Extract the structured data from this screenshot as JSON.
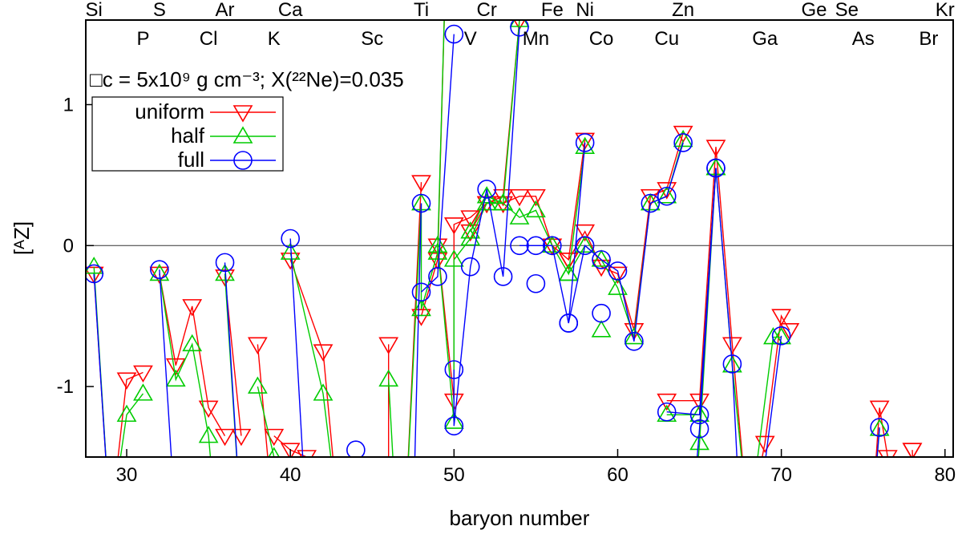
{
  "chart_data": {
    "type": "line",
    "xlabel": "baryon number",
    "ylabel": "[ᴬZ]",
    "xlim": [
      27.5,
      80.5
    ],
    "ylim": [
      -1.5,
      1.6
    ],
    "xticks": [
      30,
      40,
      50,
      60,
      70,
      80
    ],
    "yticks": [
      -1,
      0,
      1
    ],
    "annotation": "□c = 5x10⁹ g cm⁻³; X(²²Ne)=0.035",
    "reference_line_y": 0,
    "legend": {
      "placement": "upper-left"
    },
    "element_labels_top": [
      {
        "name": "Si",
        "A": 28
      },
      {
        "name": "S",
        "A": 32
      },
      {
        "name": "Ar",
        "A": 36
      },
      {
        "name": "Ca",
        "A": 40
      },
      {
        "name": "Ti",
        "A": 48
      },
      {
        "name": "Cr",
        "A": 52
      },
      {
        "name": "Fe",
        "A": 56
      },
      {
        "name": "Ni",
        "A": 58
      },
      {
        "name": "Zn",
        "A": 64
      },
      {
        "name": "Ge",
        "A": 72
      },
      {
        "name": "Se",
        "A": 74
      },
      {
        "name": "Kr",
        "A": 80
      }
    ],
    "element_labels_bottom": [
      {
        "name": "P",
        "A": 31
      },
      {
        "name": "Cl",
        "A": 35
      },
      {
        "name": "K",
        "A": 39
      },
      {
        "name": "Sc",
        "A": 45
      },
      {
        "name": "V",
        "A": 51
      },
      {
        "name": "Mn",
        "A": 55
      },
      {
        "name": "Co",
        "A": 59
      },
      {
        "name": "Cu",
        "A": 63
      },
      {
        "name": "Ga",
        "A": 69
      },
      {
        "name": "As",
        "A": 75
      },
      {
        "name": "Br",
        "A": 79
      }
    ],
    "series": [
      {
        "name": "uniform",
        "color": "#ff0000",
        "marker": "triangle-down",
        "segments": [
          [
            [
              28,
              -0.2
            ],
            [
              29,
              -2.0
            ]
          ],
          [
            [
              29,
              -2.0
            ],
            [
              30,
              -0.95
            ],
            [
              31,
              -0.9
            ]
          ],
          [
            [
              32,
              -0.2
            ],
            [
              33,
              -0.85
            ],
            [
              34,
              -0.43
            ],
            [
              35,
              -1.15
            ],
            [
              36,
              -1.35
            ]
          ],
          [
            [
              36,
              -0.22
            ],
            [
              37,
              -1.35
            ]
          ],
          [
            [
              38,
              -0.7
            ],
            [
              39,
              -2.0
            ]
          ],
          [
            [
              39,
              -1.35
            ],
            [
              40,
              -1.45
            ],
            [
              41,
              -1.5
            ]
          ],
          [
            [
              40,
              -0.1
            ],
            [
              42,
              -0.75
            ],
            [
              43,
              -2.0
            ]
          ],
          [
            [
              46,
              -2.0
            ],
            [
              46,
              -0.7
            ]
          ],
          [
            [
              47,
              -2.0
            ],
            [
              48,
              0.45
            ]
          ],
          [
            [
              48,
              -0.5
            ],
            [
              49,
              -0.1
            ],
            [
              49.5,
              2.0
            ]
          ],
          [
            [
              49,
              0.0
            ],
            [
              50,
              -1.1
            ],
            [
              50,
              0.15
            ],
            [
              51,
              0.2
            ],
            [
              52,
              0.3
            ],
            [
              53,
              0.3
            ],
            [
              54,
              0.35
            ],
            [
              55,
              0.35
            ],
            [
              56,
              0.0
            ],
            [
              57,
              -0.1
            ],
            [
              58,
              0.75
            ]
          ],
          [
            [
              51,
              0.1
            ],
            [
              52,
              0.3
            ],
            [
              53,
              0.35
            ],
            [
              54,
              1.6
            ]
          ],
          [
            [
              57,
              -0.1
            ],
            [
              58,
              0.1
            ],
            [
              59,
              -0.15
            ],
            [
              60,
              -0.2
            ],
            [
              61,
              -0.6
            ],
            [
              62,
              0.35
            ],
            [
              63,
              0.4
            ],
            [
              64,
              0.8
            ]
          ],
          [
            [
              63,
              -1.1
            ],
            [
              65,
              -1.1
            ],
            [
              66,
              0.7
            ],
            [
              67,
              -0.7
            ],
            [
              68,
              -2.0
            ]
          ],
          [
            [
              68,
              -2.0
            ],
            [
              69,
              -1.4
            ],
            [
              70,
              -0.5
            ],
            [
              70.5,
              -0.6
            ]
          ],
          [
            [
              75.5,
              -2.0
            ],
            [
              76,
              -1.15
            ],
            [
              76.5,
              -1.5
            ]
          ],
          [
            [
              78,
              -1.45
            ],
            [
              78.2,
              -2.0
            ]
          ]
        ],
        "isolated_points": [
          [
            50,
            1.8
          ],
          [
            78,
            -1.45
          ]
        ]
      },
      {
        "name": "half",
        "color": "#00cc00",
        "marker": "triangle-up",
        "segments": [
          [
            [
              28,
              -0.15
            ],
            [
              29,
              -2.0
            ]
          ],
          [
            [
              29,
              -2.0
            ],
            [
              30,
              -1.2
            ],
            [
              31,
              -1.05
            ]
          ],
          [
            [
              32,
              -0.2
            ],
            [
              33,
              -0.95
            ],
            [
              34,
              -0.7
            ],
            [
              35,
              -1.35
            ],
            [
              35.5,
              -2.0
            ]
          ],
          [
            [
              36,
              -0.2
            ],
            [
              37,
              -2.0
            ]
          ],
          [
            [
              38,
              -1.0
            ],
            [
              39,
              -1.5
            ],
            [
              39.2,
              -2.0
            ]
          ],
          [
            [
              40,
              -0.05
            ],
            [
              42,
              -1.05
            ],
            [
              43,
              -2.0
            ]
          ],
          [
            [
              46,
              -0.95
            ],
            [
              46.5,
              -2.0
            ]
          ],
          [
            [
              47,
              -2.0
            ],
            [
              48,
              0.3
            ],
            [
              48,
              -0.45
            ],
            [
              49,
              -0.05
            ],
            [
              49.5,
              2.0
            ]
          ],
          [
            [
              49,
              0.0
            ],
            [
              50,
              -1.25
            ],
            [
              50,
              -0.1
            ],
            [
              51,
              0.05
            ],
            [
              52,
              0.3
            ],
            [
              53,
              0.3
            ],
            [
              54,
              0.2
            ],
            [
              55,
              0.25
            ],
            [
              56,
              0.0
            ],
            [
              57,
              -0.2
            ],
            [
              58,
              0.7
            ]
          ],
          [
            [
              51,
              0.1
            ],
            [
              52,
              0.35
            ],
            [
              53,
              0.3
            ],
            [
              54,
              1.6
            ]
          ],
          [
            [
              57,
              -0.2
            ],
            [
              58,
              0.0
            ],
            [
              59,
              -0.1
            ],
            [
              60,
              -0.3
            ],
            [
              61,
              -0.65
            ],
            [
              62,
              0.3
            ],
            [
              63,
              0.35
            ],
            [
              64,
              0.75
            ]
          ],
          [
            [
              59,
              -0.6
            ]
          ],
          [
            [
              63,
              -1.2
            ],
            [
              65,
              -1.2
            ],
            [
              66,
              0.55
            ],
            [
              67,
              -0.85
            ],
            [
              68,
              -2.0
            ]
          ],
          [
            [
              64.6,
              -2.0
            ],
            [
              65,
              -1.4
            ],
            [
              66,
              0.55
            ]
          ],
          [
            [
              68,
              -2.0
            ],
            [
              69.5,
              -0.65
            ],
            [
              70,
              -0.65
            ]
          ],
          [
            [
              75.5,
              -2.0
            ],
            [
              76,
              -1.3
            ]
          ]
        ],
        "isolated_points": []
      },
      {
        "name": "full",
        "color": "#0000ff",
        "marker": "circle",
        "segments": [
          [
            [
              28,
              -0.2
            ],
            [
              29,
              -2.0
            ]
          ],
          [
            [
              32,
              -0.17
            ],
            [
              33,
              -2.0
            ]
          ],
          [
            [
              36,
              -0.12
            ],
            [
              37,
              -2.0
            ]
          ],
          [
            [
              40,
              0.05
            ],
            [
              41,
              -2.0
            ]
          ],
          [
            [
              44,
              -1.45
            ]
          ],
          [
            [
              47.5,
              -2.0
            ],
            [
              48,
              0.3
            ]
          ],
          [
            [
              48,
              -0.33
            ],
            [
              49,
              -0.22
            ],
            [
              50,
              1.5
            ]
          ],
          [
            [
              50,
              -0.88
            ],
            [
              50,
              -1.28
            ],
            [
              51,
              -0.15
            ],
            [
              52,
              0.4
            ],
            [
              53,
              -0.22
            ],
            [
              54,
              1.55
            ]
          ],
          [
            [
              54,
              0.0
            ],
            [
              55,
              0.0
            ],
            [
              56,
              0.0
            ],
            [
              57,
              -0.55
            ],
            [
              58,
              0.73
            ]
          ],
          [
            [
              55,
              -0.27
            ]
          ],
          [
            [
              57,
              -0.55
            ],
            [
              58,
              0.0
            ],
            [
              59,
              -0.1
            ],
            [
              60,
              -0.18
            ],
            [
              61,
              -0.68
            ],
            [
              62,
              0.3
            ],
            [
              63,
              0.35
            ],
            [
              64,
              0.73
            ]
          ],
          [
            [
              59,
              -0.48
            ]
          ],
          [
            [
              63,
              -1.18
            ],
            [
              65,
              -1.2
            ],
            [
              66,
              0.55
            ],
            [
              67,
              -0.84
            ],
            [
              67.5,
              -2.0
            ]
          ],
          [
            [
              64.5,
              -2.0
            ],
            [
              65,
              -1.3
            ],
            [
              66,
              0.55
            ]
          ],
          [
            [
              68.5,
              -2.0
            ],
            [
              70,
              -0.64
            ]
          ],
          [
            [
              75.5,
              -2.0
            ],
            [
              76,
              -1.29
            ]
          ]
        ],
        "isolated_points": []
      }
    ]
  }
}
